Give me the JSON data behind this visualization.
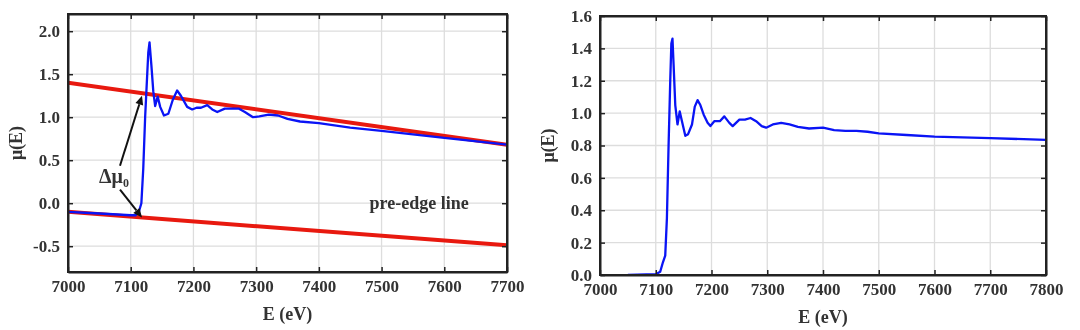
{
  "chart_data": [
    {
      "type": "line",
      "xlabel": "E (eV)",
      "ylabel": "μ(E)",
      "xlim": [
        7000,
        7700
      ],
      "ylim": [
        -0.8,
        2.2
      ],
      "xticks": [
        7000,
        7100,
        7200,
        7300,
        7400,
        7500,
        7600,
        7700
      ],
      "yticks": [
        {
          "value": -0.5,
          "label": "-0.5"
        },
        {
          "value": 0,
          "label": "0.0"
        },
        {
          "value": 0.5,
          "label": "0.5"
        },
        {
          "value": 1,
          "label": "1.0"
        },
        {
          "value": 1.5,
          "label": "1.5"
        },
        {
          "value": 2,
          "label": "2.0"
        }
      ],
      "grid": true,
      "marker": "none",
      "line_style": "solid",
      "series": [
        {
          "color": "#e8190f",
          "x": [
            7000,
            7700
          ],
          "values": [
            1.4,
            0.68
          ]
        },
        {
          "color": "#e8190f",
          "x": [
            7000,
            7700
          ],
          "values": [
            -0.1,
            -0.49
          ]
        },
        {
          "color": "#0a14f5",
          "x": [
            7000,
            7050,
            7100,
            7108,
            7113,
            7117,
            7120,
            7123,
            7125,
            7128,
            7130,
            7133,
            7136,
            7139,
            7143,
            7147,
            7153,
            7160,
            7167,
            7174,
            7180,
            7190,
            7198,
            7205,
            7212,
            7222,
            7230,
            7238,
            7250,
            7260,
            7272,
            7282,
            7295,
            7305,
            7320,
            7335,
            7350,
            7370,
            7400,
            7450,
            7500,
            7600,
            7700
          ],
          "values": [
            -0.1,
            -0.12,
            -0.14,
            -0.14,
            -0.1,
            0.0,
            0.4,
            1.0,
            1.3,
            1.75,
            1.87,
            1.6,
            1.3,
            1.13,
            1.24,
            1.12,
            1.02,
            1.04,
            1.2,
            1.31,
            1.25,
            1.12,
            1.09,
            1.11,
            1.11,
            1.14,
            1.09,
            1.06,
            1.1,
            1.1,
            1.1,
            1.06,
            1.0,
            1.01,
            1.03,
            1.02,
            0.98,
            0.95,
            0.93,
            0.88,
            0.84,
            0.76,
            0.68
          ]
        }
      ],
      "annotations": [
        {
          "text": "Δμ₀",
          "x": 7118,
          "y": 1.25
        },
        "pre-edge line"
      ]
    },
    {
      "type": "line",
      "xlabel": "E (eV)",
      "ylabel": "μ(E)",
      "xlim": [
        7000,
        7800
      ],
      "ylim": [
        0,
        1.6
      ],
      "xticks": [
        7000,
        7100,
        7200,
        7300,
        7400,
        7500,
        7600,
        7700,
        7800
      ],
      "yticks": [
        {
          "value": 0,
          "label": "0.0"
        },
        {
          "value": 0.2,
          "label": "0.2"
        },
        {
          "value": 0.4,
          "label": "0.4"
        },
        {
          "value": 0.6,
          "label": "0.6"
        },
        {
          "value": 0.8,
          "label": "0.8"
        },
        {
          "value": 1,
          "label": "1.0"
        },
        {
          "value": 1.2,
          "label": "1.2"
        },
        {
          "value": 1.4,
          "label": "1.4"
        },
        {
          "value": 1.6,
          "label": "1.6"
        }
      ],
      "grid": true,
      "marker": "none",
      "line_style": "solid",
      "series": [
        {
          "color": "#0a14f5",
          "x": [
            7050,
            7100,
            7108,
            7113,
            7117,
            7120,
            7123,
            7126,
            7128,
            7130,
            7132,
            7135,
            7139,
            7143,
            7147,
            7153,
            7158,
            7165,
            7170,
            7175,
            7180,
            7186,
            7193,
            7198,
            7205,
            7215,
            7223,
            7232,
            7238,
            7250,
            7260,
            7270,
            7280,
            7290,
            7298,
            7310,
            7325,
            7340,
            7355,
            7375,
            7400,
            7420,
            7440,
            7460,
            7480,
            7500,
            7550,
            7600,
            7700,
            7800
          ],
          "values": [
            0,
            0.005,
            0.02,
            0.08,
            0.12,
            0.35,
            0.8,
            1.2,
            1.43,
            1.46,
            1.3,
            1.05,
            0.93,
            1.01,
            0.95,
            0.86,
            0.87,
            0.93,
            1.04,
            1.08,
            1.05,
            0.99,
            0.94,
            0.92,
            0.95,
            0.95,
            0.98,
            0.94,
            0.92,
            0.96,
            0.96,
            0.97,
            0.95,
            0.92,
            0.91,
            0.93,
            0.94,
            0.93,
            0.915,
            0.905,
            0.91,
            0.895,
            0.89,
            0.89,
            0.885,
            0.875,
            0.865,
            0.855,
            0.845,
            0.835
          ]
        }
      ]
    }
  ]
}
